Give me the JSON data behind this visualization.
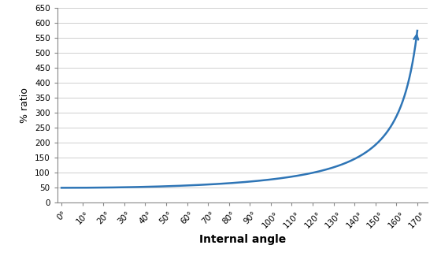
{
  "xlabel": "Internal angle",
  "ylabel": "% ratio",
  "xlim": [
    -2,
    175
  ],
  "ylim": [
    0,
    650
  ],
  "yticks": [
    0,
    50,
    100,
    150,
    200,
    250,
    300,
    350,
    400,
    450,
    500,
    550,
    600,
    650
  ],
  "xtick_vals": [
    0,
    10,
    20,
    30,
    40,
    50,
    60,
    70,
    80,
    90,
    100,
    110,
    120,
    130,
    140,
    150,
    160,
    170
  ],
  "line_color": "#2E75B6",
  "line_width": 1.8,
  "background_color": "#ffffff",
  "grid_color": "#c8c8c8",
  "xlabel_fontsize": 10,
  "ylabel_fontsize": 9,
  "tick_fontsize": 7.5
}
